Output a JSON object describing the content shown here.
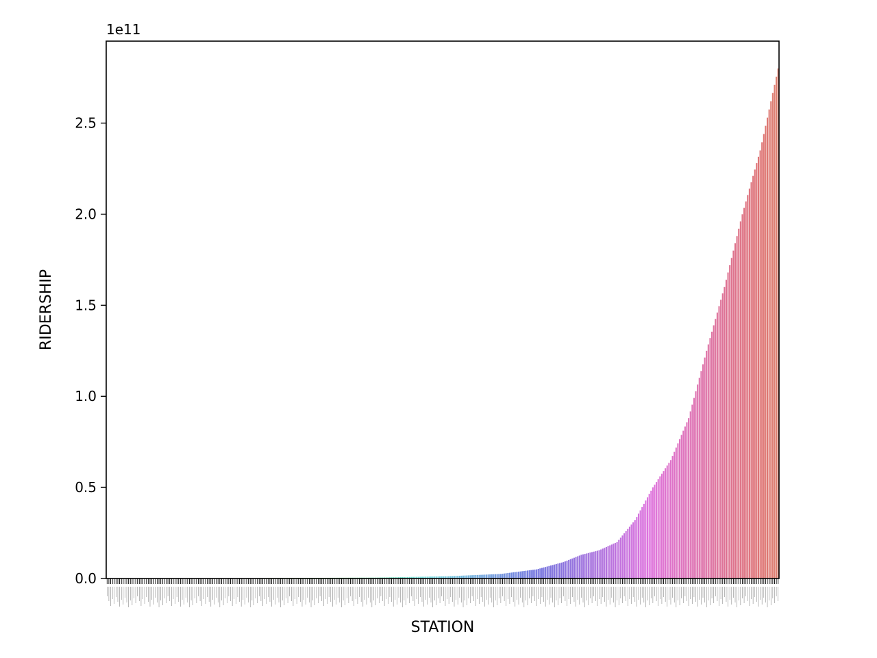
{
  "chart_data": {
    "type": "bar",
    "xlabel": "STATION",
    "ylabel": "RIDERSHIP",
    "y_offset_label": "1e11",
    "y_scale": 100000000000,
    "ylim": [
      0,
      2.95
    ],
    "yticks": [
      0.0,
      0.5,
      1.0,
      1.5,
      2.0,
      2.5
    ],
    "ytick_labels": [
      "0.0",
      "0.5",
      "1.0",
      "1.5",
      "2.0",
      "2.5"
    ],
    "grid": false,
    "legend": "none",
    "bar_count": 376,
    "order": "ascending",
    "color_scheme": "husl palette: red → yellow-green → teal → blue → violet → pink",
    "profile_points": [
      {
        "rank": 0,
        "value": 0.0
      },
      {
        "rank": 80,
        "value": 0.002
      },
      {
        "rank": 150,
        "value": 0.005
      },
      {
        "rank": 190,
        "value": 0.012
      },
      {
        "rank": 220,
        "value": 0.025
      },
      {
        "rank": 240,
        "value": 0.05
      },
      {
        "rank": 255,
        "value": 0.09
      },
      {
        "rank": 265,
        "value": 0.13
      },
      {
        "rank": 275,
        "value": 0.155
      },
      {
        "rank": 285,
        "value": 0.2
      },
      {
        "rank": 295,
        "value": 0.32
      },
      {
        "rank": 305,
        "value": 0.5
      },
      {
        "rank": 315,
        "value": 0.65
      },
      {
        "rank": 325,
        "value": 0.88
      },
      {
        "rank": 335,
        "value": 1.25
      },
      {
        "rank": 345,
        "value": 1.6
      },
      {
        "rank": 355,
        "value": 2.0
      },
      {
        "rank": 365,
        "value": 2.35
      },
      {
        "rank": 375,
        "value": 2.8
      }
    ]
  }
}
